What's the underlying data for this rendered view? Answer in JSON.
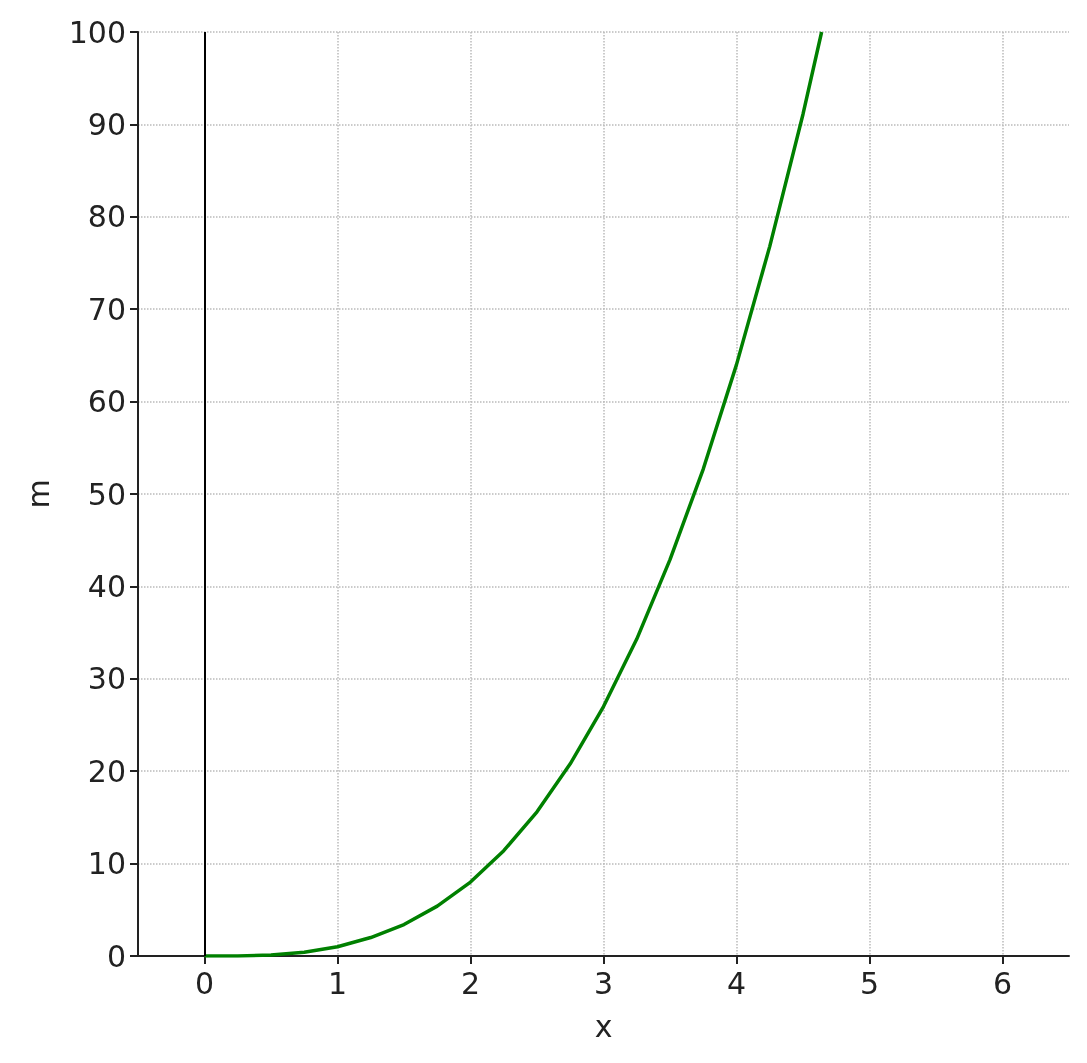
{
  "chart_data": {
    "type": "line",
    "xlabel": "x",
    "ylabel": "m",
    "x": [
      0,
      0.25,
      0.5,
      0.75,
      1,
      1.25,
      1.5,
      1.75,
      2,
      2.25,
      2.5,
      2.75,
      3,
      3.25,
      3.5,
      3.75,
      4,
      4.25,
      4.5,
      4.64
    ],
    "series": [
      {
        "color": "#008000",
        "values": [
          0,
          0,
          0.1,
          0.4,
          1,
          2,
          3.4,
          5.4,
          8,
          11.4,
          15.6,
          20.8,
          27,
          34.3,
          42.9,
          52.7,
          64,
          76.8,
          91.1,
          100
        ]
      }
    ],
    "xlim": [
      -0.5,
      6.5
    ],
    "xticks": [
      0,
      1,
      2,
      3,
      4,
      5,
      6
    ],
    "ylim": [
      0,
      100
    ],
    "yticks": [
      0,
      10,
      20,
      30,
      40,
      50,
      60,
      70,
      80,
      90,
      100
    ],
    "ref_lines": [
      {
        "axis": "x",
        "value": 0,
        "label": null,
        "color": "#000000",
        "line_style": "solid"
      }
    ],
    "grid": true,
    "marker": "none",
    "line_style": "solid"
  }
}
